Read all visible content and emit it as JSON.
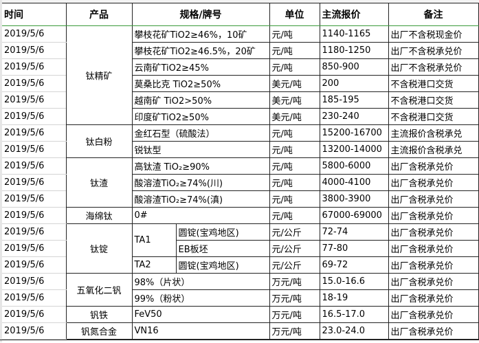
{
  "headers": {
    "time": "时间",
    "product": "产品",
    "spec": "规格/牌号",
    "unit": "单位",
    "price": "主流报价",
    "note": "备注"
  },
  "groups": [
    {
      "product": "钛精矿",
      "rows": [
        {
          "date": "2019/5/6",
          "spec": "攀枝花矿TiO2≥46%，10矿",
          "unit": "元/吨",
          "price": "1140-1165",
          "note": "出厂不含税现金价"
        },
        {
          "date": "2019/5/6",
          "spec": "攀枝花矿TiO2≥46.5%，20矿",
          "unit": "元/吨",
          "price": "1180-1250",
          "note": "出厂不含税承兑价"
        },
        {
          "date": "2019/5/6",
          "spec": "云南矿TiO2≥45%",
          "unit": "元/吨",
          "price": "850-900",
          "note": "出厂不含税承兑价"
        },
        {
          "date": "2019/5/6",
          "spec": "莫桑比克 TiO2≥50%",
          "unit": "美元/吨",
          "price": "200",
          "note": "不含税港口交货"
        },
        {
          "date": "2019/5/6",
          "spec": "越南矿 TiO2>50%",
          "unit": "美元/吨",
          "price": "185-195",
          "note": "不含税港口交货"
        },
        {
          "date": "2019/5/6",
          "spec": "印度矿TiO2≥50%",
          "unit": "美元/吨",
          "price": "230-240",
          "note": "不含税港口交货"
        }
      ]
    },
    {
      "product": "钛白粉",
      "rows": [
        {
          "date": "2019/5/6",
          "spec": "金红石型（硫酸法）",
          "unit": "元/吨",
          "price": "15200-16700",
          "note": "主流报价含税承兑"
        },
        {
          "date": "2019/5/6",
          "spec": "锐钛型",
          "unit": "元/吨",
          "price": "13200-14000",
          "note": "主流报价含税承兑"
        }
      ]
    },
    {
      "product": "钛渣",
      "rows": [
        {
          "date": "2019/5/6",
          "spec": "高钛渣 TiO₂≥90%",
          "unit": "元/吨",
          "price": "5800-6000",
          "note": "出厂含税承兑价"
        },
        {
          "date": "2019/5/6",
          "spec": "酸溶渣TiO₂≥74%(川)",
          "unit": "元/吨",
          "price": "4000-4100",
          "note": "出厂含税承兑价"
        },
        {
          "date": "2019/5/6",
          "spec": "酸溶渣TiO₂≥74%(滇)",
          "unit": "元/吨",
          "price": "3800-3900",
          "note": "出厂含税承兑价"
        }
      ]
    },
    {
      "product": "海绵钛",
      "rows": [
        {
          "date": "2019/5/6",
          "spec": "0#",
          "unit": "元/吨",
          "price": "67000-69000",
          "note": "出厂含税承兑价"
        }
      ]
    },
    {
      "product": "钛锭",
      "rows": [
        {
          "date": "2019/5/6",
          "grade": "TA1",
          "grade_span": 2,
          "spec": "圆锭(宝鸡地区)",
          "unit": "元/公斤",
          "price": "72-74",
          "note": "出厂含税承兑价"
        },
        {
          "date": "2019/5/6",
          "spec": "EB板坯",
          "unit": "元/公斤",
          "price": "77-80",
          "note": "出厂含税承兑价"
        },
        {
          "date": "2019/5/6",
          "grade": "TA2",
          "grade_span": 1,
          "spec": "圆锭(宝鸡地区)",
          "unit": "元/公斤",
          "price": "69-72",
          "note": "出厂含税承兑价"
        }
      ]
    },
    {
      "product": "五氧化二钒",
      "rows": [
        {
          "date": "2019/5/6",
          "spec": "98%（片状）",
          "unit": "万元/吨",
          "price": "15.0-16.6",
          "note": "出厂含税承兑价"
        },
        {
          "date": "2019/5/6",
          "spec": "99%（粉状）",
          "unit": "万元/吨",
          "price": "18-19",
          "note": "出厂含税承兑价"
        }
      ]
    },
    {
      "product": "钒铁",
      "rows": [
        {
          "date": "2019/5/6",
          "spec": "FeV50",
          "unit": "万元/吨",
          "price": "16.5-17.0",
          "note": "出厂含税承兑价"
        }
      ]
    },
    {
      "product": "钒氮合金",
      "rows": [
        {
          "date": "2019/5/6",
          "spec": "VN16",
          "unit": "万元/吨",
          "price": "23.0-24.0",
          "note": "出厂含税承兑价"
        }
      ]
    }
  ]
}
